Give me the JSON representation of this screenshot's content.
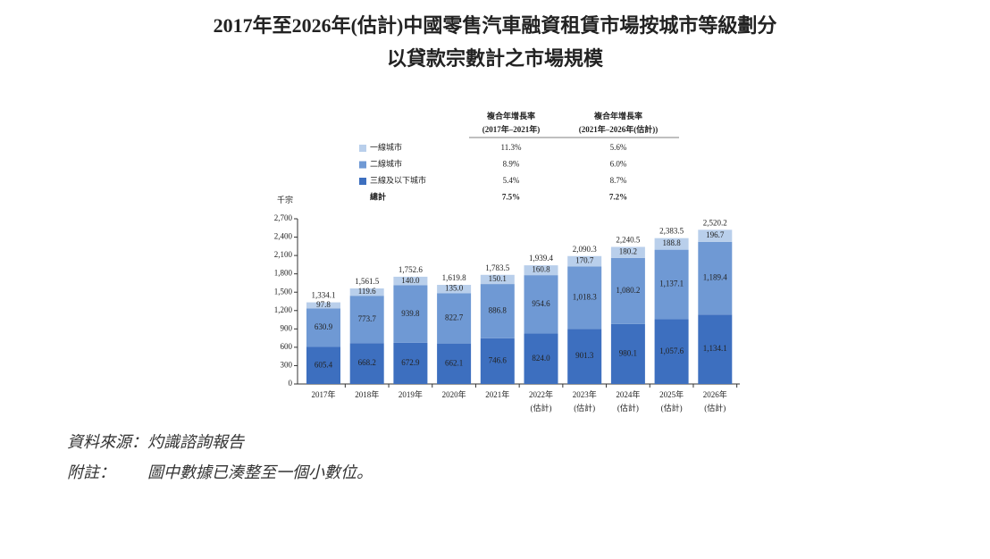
{
  "chart_data": {
    "type": "stacked-bar",
    "title": [
      "2017年至2026年(估計)中國零售汽車融資租賃市場按城市等級劃分",
      "以貸款宗數計之市場規模"
    ],
    "y_label": "千宗",
    "categories": [
      [
        "2017年"
      ],
      [
        "2018年"
      ],
      [
        "2019年"
      ],
      [
        "2020年"
      ],
      [
        "2021年"
      ],
      [
        "2022年",
        "(估計)"
      ],
      [
        "2023年",
        "(估計)"
      ],
      [
        "2024年",
        "(估計)"
      ],
      [
        "2025年",
        "(估計)"
      ],
      [
        "2026年",
        "(估計)"
      ]
    ],
    "ylim": [
      0,
      2700
    ],
    "yticks": [
      0,
      300,
      600,
      900,
      {
        "value": 1200,
        "label": "1,200"
      },
      {
        "value": 1500,
        "label": "1,500"
      },
      {
        "value": 1800,
        "label": "1,800"
      },
      {
        "value": 2100,
        "label": "2,100"
      },
      {
        "value": 2400,
        "label": "2,400"
      },
      {
        "value": 2700,
        "label": "2,700"
      }
    ],
    "cagr_headers": [
      [
        "複合年增長率",
        "(2017年–2021年)"
      ],
      [
        "複合年增長率",
        "(2021年–2026年(估計))"
      ]
    ],
    "series": [
      {
        "name": "三線及以下城市",
        "color": "#3d6fbf",
        "cagr": [
          "5.4%",
          "8.7%"
        ],
        "values": [
          605.4,
          668.2,
          672.9,
          662.1,
          746.6,
          824.0,
          901.3,
          980.1,
          1057.6,
          1134.1
        ],
        "value_labels": [
          "605.4",
          "668.2",
          "672.9",
          "662.1",
          "746.6",
          "824.0",
          "901.3",
          "980.1",
          "1,057.6",
          "1,134.1"
        ]
      },
      {
        "name": "二線城市",
        "color": "#6f99d4",
        "cagr": [
          "8.9%",
          "6.0%"
        ],
        "values": [
          630.9,
          773.7,
          939.8,
          822.7,
          886.8,
          954.6,
          1018.3,
          1080.2,
          1137.1,
          1189.4
        ],
        "value_labels": [
          "630.9",
          "773.7",
          "939.8",
          "822.7",
          "886.8",
          "954.6",
          "1,018.3",
          "1,080.2",
          "1,137.1",
          "1,189.4"
        ]
      },
      {
        "name": "一線城市",
        "color": "#b9cfeb",
        "cagr": [
          "11.3%",
          "5.6%"
        ],
        "values": [
          97.8,
          119.6,
          140.0,
          135.0,
          150.1,
          160.8,
          170.7,
          180.2,
          188.8,
          196.7
        ],
        "value_labels": [
          "97.8",
          "119.6",
          "140.0",
          "135.0",
          "150.1",
          "160.8",
          "170.7",
          "180.2",
          "188.8",
          "196.7"
        ]
      }
    ],
    "total": {
      "name": "總計",
      "cagr": [
        "7.5%",
        "7.2%"
      ],
      "values": [
        1334.1,
        1561.5,
        1752.6,
        1619.8,
        1783.5,
        1939.4,
        2090.3,
        2240.5,
        2383.5,
        2520.2
      ],
      "value_labels": [
        "1,334.1",
        "1,561.5",
        "1,752.6",
        "1,619.8",
        "1,783.5",
        "1,939.4",
        "2,090.3",
        "2,240.5",
        "2,383.5",
        "2,520.2"
      ]
    },
    "source": "資料來源：灼識諮詢報告",
    "note_label": "附註：",
    "note": "圖中數據已湊整至一個小數位。"
  }
}
